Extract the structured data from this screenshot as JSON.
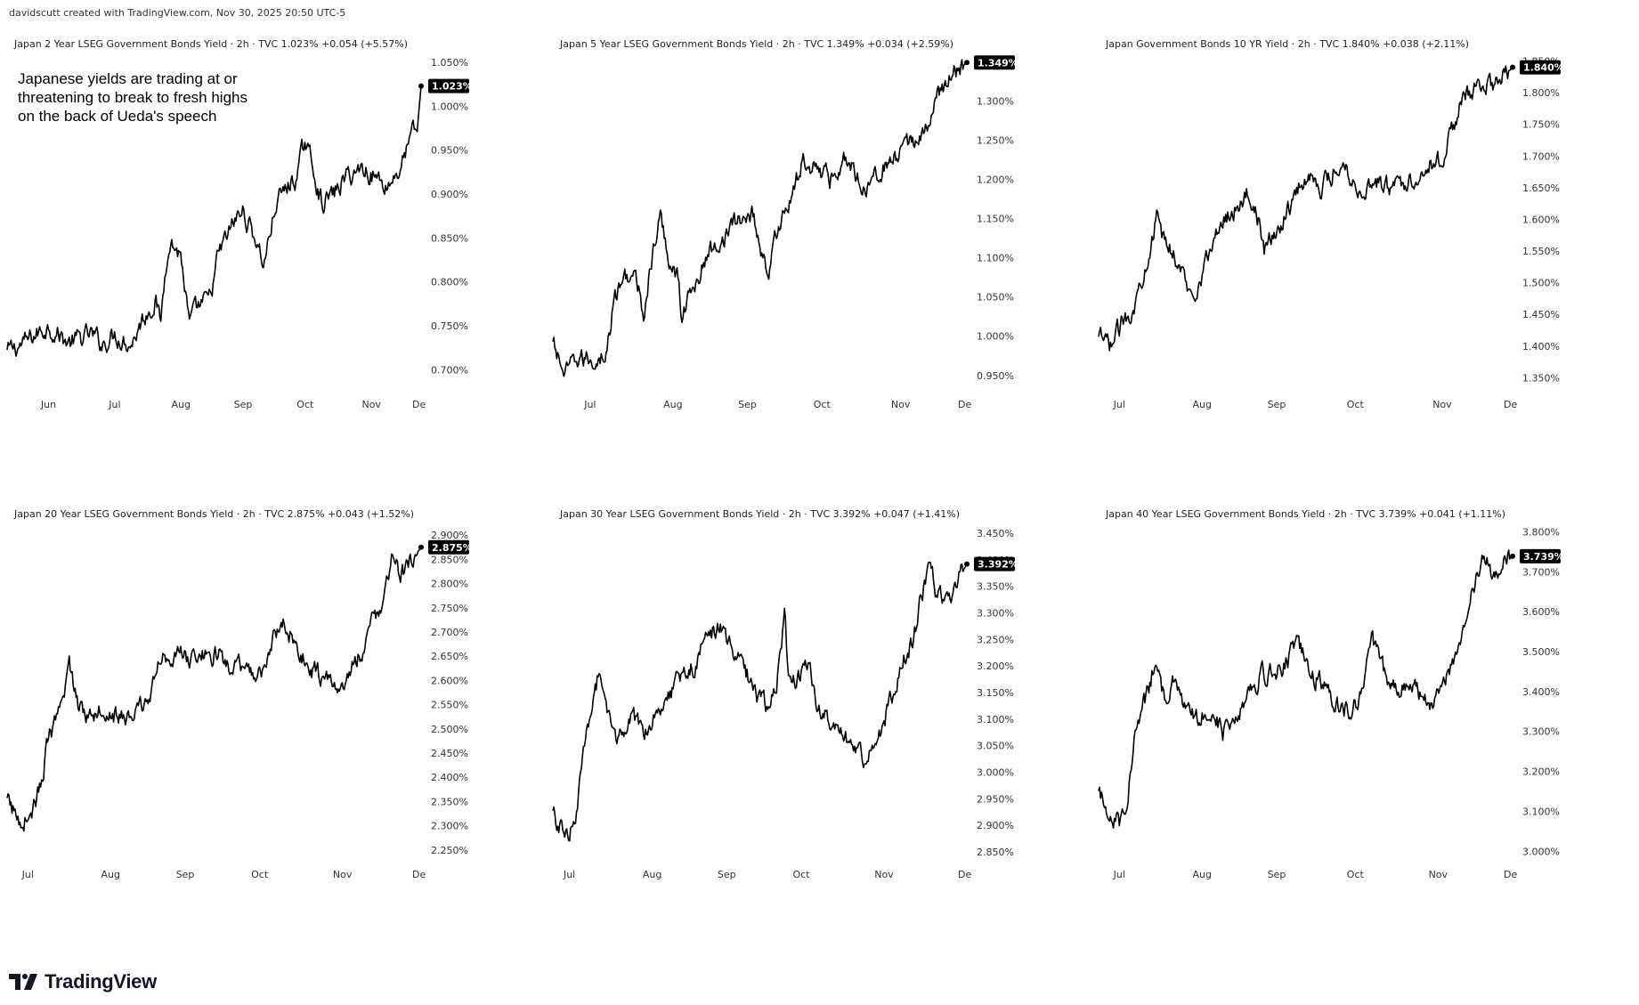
{
  "credit": "davidscutt created with TradingView.com, Nov 30, 2025 20:50 UTC-5",
  "annotation_lines": [
    "Japanese yields are trading at or",
    "threatening to break to fresh highs",
    "on the back of Ueda's speech"
  ],
  "logo_text": "TradingView",
  "icons": {
    "logo": "tradingview-logo-icon"
  },
  "colors": {
    "line": "#000000",
    "tag_bg": "#000000",
    "tag_text": "#ffffff",
    "background": "#ffffff"
  },
  "chart_data": [
    {
      "type": "line",
      "title": "Japan 2 Year LSEG Government Bonds Yield · 2h · TVC  1.023%  +0.054 (+5.57%)",
      "last_label": "1.023%",
      "last_value": 1.023,
      "ylim": [
        0.68,
        1.055
      ],
      "yticks": [
        0.7,
        0.75,
        0.8,
        0.85,
        0.9,
        0.95,
        1.0,
        1.05
      ],
      "ytick_labels": [
        "0.700%",
        "0.750%",
        "0.800%",
        "0.850%",
        "0.900%",
        "0.950%",
        "1.000%",
        "1.050%"
      ],
      "xticks": [
        "Jun",
        "Jul",
        "Aug",
        "Sep",
        "Oct",
        "Nov",
        "De"
      ],
      "xtick_pos": [
        0.1,
        0.26,
        0.42,
        0.57,
        0.72,
        0.88,
        0.995
      ],
      "anchors": [
        [
          0,
          0.72
        ],
        [
          0.04,
          0.73
        ],
        [
          0.1,
          0.75
        ],
        [
          0.15,
          0.73
        ],
        [
          0.2,
          0.74
        ],
        [
          0.23,
          0.73
        ],
        [
          0.26,
          0.74
        ],
        [
          0.3,
          0.73
        ],
        [
          0.33,
          0.76
        ],
        [
          0.36,
          0.78
        ],
        [
          0.37,
          0.75
        ],
        [
          0.39,
          0.85
        ],
        [
          0.42,
          0.83
        ],
        [
          0.44,
          0.75
        ],
        [
          0.46,
          0.77
        ],
        [
          0.49,
          0.78
        ],
        [
          0.51,
          0.83
        ],
        [
          0.55,
          0.87
        ],
        [
          0.57,
          0.88
        ],
        [
          0.6,
          0.85
        ],
        [
          0.62,
          0.82
        ],
        [
          0.65,
          0.89
        ],
        [
          0.68,
          0.91
        ],
        [
          0.7,
          0.92
        ],
        [
          0.72,
          0.96
        ],
        [
          0.74,
          0.93
        ],
        [
          0.76,
          0.89
        ],
        [
          0.79,
          0.9
        ],
        [
          0.82,
          0.92
        ],
        [
          0.86,
          0.93
        ],
        [
          0.89,
          0.92
        ],
        [
          0.92,
          0.91
        ],
        [
          0.95,
          0.93
        ],
        [
          0.98,
          0.97
        ],
        [
          0.99,
          0.97
        ],
        [
          1.0,
          1.023
        ]
      ]
    },
    {
      "type": "line",
      "title": "Japan 5 Year LSEG Government Bonds Yield · 2h · TVC  1.349%  +0.034 (+2.59%)",
      "last_label": "1.349%",
      "last_value": 1.349,
      "ylim": [
        0.935,
        1.355
      ],
      "yticks": [
        0.95,
        1.0,
        1.05,
        1.1,
        1.15,
        1.2,
        1.25,
        1.3
      ],
      "ytick_labels": [
        "0.950%",
        "1.000%",
        "1.050%",
        "1.100%",
        "1.150%",
        "1.200%",
        "1.250%",
        "1.300%"
      ],
      "xticks": [
        "Jul",
        "Aug",
        "Sep",
        "Oct",
        "Nov",
        "De"
      ],
      "xtick_pos": [
        0.09,
        0.29,
        0.47,
        0.65,
        0.84,
        0.995
      ],
      "anchors": [
        [
          0,
          0.99
        ],
        [
          0.03,
          0.95
        ],
        [
          0.06,
          0.97
        ],
        [
          0.1,
          0.97
        ],
        [
          0.13,
          0.98
        ],
        [
          0.15,
          1.05
        ],
        [
          0.18,
          1.08
        ],
        [
          0.2,
          1.07
        ],
        [
          0.22,
          1.03
        ],
        [
          0.24,
          1.1
        ],
        [
          0.26,
          1.15
        ],
        [
          0.28,
          1.1
        ],
        [
          0.3,
          1.08
        ],
        [
          0.31,
          1.03
        ],
        [
          0.34,
          1.06
        ],
        [
          0.37,
          1.1
        ],
        [
          0.4,
          1.12
        ],
        [
          0.43,
          1.14
        ],
        [
          0.46,
          1.15
        ],
        [
          0.48,
          1.16
        ],
        [
          0.5,
          1.12
        ],
        [
          0.52,
          1.08
        ],
        [
          0.55,
          1.15
        ],
        [
          0.58,
          1.18
        ],
        [
          0.6,
          1.22
        ],
        [
          0.63,
          1.22
        ],
        [
          0.65,
          1.21
        ],
        [
          0.67,
          1.2
        ],
        [
          0.7,
          1.23
        ],
        [
          0.73,
          1.21
        ],
        [
          0.75,
          1.19
        ],
        [
          0.78,
          1.21
        ],
        [
          0.81,
          1.22
        ],
        [
          0.84,
          1.23
        ],
        [
          0.87,
          1.25
        ],
        [
          0.9,
          1.26
        ],
        [
          0.92,
          1.29
        ],
        [
          0.94,
          1.32
        ],
        [
          0.96,
          1.33
        ],
        [
          0.98,
          1.34
        ],
        [
          1.0,
          1.349
        ]
      ]
    },
    {
      "type": "line",
      "title": "Japan Government Bonds 10 YR Yield · 2h · TVC  1.840%  +0.038 (+2.11%)",
      "last_label": "1.840%",
      "last_value": 1.84,
      "ylim": [
        1.335,
        1.855
      ],
      "yticks": [
        1.35,
        1.4,
        1.45,
        1.5,
        1.55,
        1.6,
        1.65,
        1.7,
        1.75,
        1.8,
        1.85
      ],
      "ytick_labels": [
        "1.350%",
        "1.400%",
        "1.450%",
        "1.500%",
        "1.550%",
        "1.600%",
        "1.650%",
        "1.700%",
        "1.750%",
        "1.800%",
        "1.850%"
      ],
      "xticks": [
        "Jul",
        "Aug",
        "Sep",
        "Oct",
        "Nov",
        "De"
      ],
      "xtick_pos": [
        0.05,
        0.25,
        0.43,
        0.62,
        0.83,
        0.995
      ],
      "anchors": [
        [
          0,
          1.41
        ],
        [
          0.03,
          1.4
        ],
        [
          0.06,
          1.44
        ],
        [
          0.09,
          1.47
        ],
        [
          0.12,
          1.55
        ],
        [
          0.14,
          1.6
        ],
        [
          0.16,
          1.56
        ],
        [
          0.18,
          1.55
        ],
        [
          0.2,
          1.52
        ],
        [
          0.22,
          1.48
        ],
        [
          0.24,
          1.5
        ],
        [
          0.27,
          1.55
        ],
        [
          0.3,
          1.6
        ],
        [
          0.33,
          1.62
        ],
        [
          0.36,
          1.64
        ],
        [
          0.38,
          1.62
        ],
        [
          0.4,
          1.55
        ],
        [
          0.43,
          1.58
        ],
        [
          0.46,
          1.62
        ],
        [
          0.49,
          1.66
        ],
        [
          0.52,
          1.67
        ],
        [
          0.54,
          1.65
        ],
        [
          0.57,
          1.68
        ],
        [
          0.59,
          1.69
        ],
        [
          0.61,
          1.67
        ],
        [
          0.63,
          1.64
        ],
        [
          0.66,
          1.66
        ],
        [
          0.7,
          1.65
        ],
        [
          0.74,
          1.66
        ],
        [
          0.77,
          1.67
        ],
        [
          0.8,
          1.69
        ],
        [
          0.82,
          1.69
        ],
        [
          0.85,
          1.73
        ],
        [
          0.88,
          1.8
        ],
        [
          0.9,
          1.79
        ],
        [
          0.92,
          1.82
        ],
        [
          0.95,
          1.81
        ],
        [
          0.97,
          1.82
        ],
        [
          1.0,
          1.84
        ]
      ]
    },
    {
      "type": "line",
      "title": "Japan 20 Year LSEG Government Bonds Yield · 2h · TVC  2.875%  +0.043 (+1.52%)",
      "last_label": "2.875%",
      "last_value": 2.875,
      "ylim": [
        2.235,
        2.915
      ],
      "yticks": [
        2.25,
        2.3,
        2.35,
        2.4,
        2.45,
        2.5,
        2.55,
        2.6,
        2.65,
        2.7,
        2.75,
        2.8,
        2.85,
        2.9
      ],
      "ytick_labels": [
        "2.250%",
        "2.300%",
        "2.350%",
        "2.400%",
        "2.450%",
        "2.500%",
        "2.550%",
        "2.600%",
        "2.650%",
        "2.700%",
        "2.750%",
        "2.800%",
        "2.850%",
        "2.900%"
      ],
      "xticks": [
        "Jul",
        "Aug",
        "Sep",
        "Oct",
        "Nov",
        "De"
      ],
      "xtick_pos": [
        0.05,
        0.25,
        0.43,
        0.61,
        0.81,
        0.995
      ],
      "anchors": [
        [
          0,
          2.35
        ],
        [
          0.03,
          2.31
        ],
        [
          0.06,
          2.33
        ],
        [
          0.08,
          2.38
        ],
        [
          0.1,
          2.48
        ],
        [
          0.13,
          2.53
        ],
        [
          0.15,
          2.64
        ],
        [
          0.17,
          2.55
        ],
        [
          0.2,
          2.53
        ],
        [
          0.23,
          2.55
        ],
        [
          0.26,
          2.53
        ],
        [
          0.28,
          2.52
        ],
        [
          0.31,
          2.53
        ],
        [
          0.34,
          2.56
        ],
        [
          0.36,
          2.62
        ],
        [
          0.39,
          2.66
        ],
        [
          0.42,
          2.65
        ],
        [
          0.45,
          2.64
        ],
        [
          0.48,
          2.66
        ],
        [
          0.51,
          2.65
        ],
        [
          0.54,
          2.63
        ],
        [
          0.57,
          2.62
        ],
        [
          0.6,
          2.61
        ],
        [
          0.62,
          2.63
        ],
        [
          0.64,
          2.67
        ],
        [
          0.66,
          2.72
        ],
        [
          0.69,
          2.69
        ],
        [
          0.71,
          2.65
        ],
        [
          0.74,
          2.62
        ],
        [
          0.77,
          2.6
        ],
        [
          0.8,
          2.58
        ],
        [
          0.83,
          2.62
        ],
        [
          0.86,
          2.67
        ],
        [
          0.89,
          2.73
        ],
        [
          0.91,
          2.78
        ],
        [
          0.93,
          2.85
        ],
        [
          0.95,
          2.81
        ],
        [
          0.97,
          2.84
        ],
        [
          1.0,
          2.875
        ]
      ]
    },
    {
      "type": "line",
      "title": "Japan 30 Year LSEG Government Bonds Yield · 2h · TVC  3.392%  +0.047 (+1.41%)",
      "last_label": "3.392%",
      "last_value": 3.392,
      "ylim": [
        2.84,
        3.46
      ],
      "yticks": [
        2.85,
        2.9,
        2.95,
        3.0,
        3.05,
        3.1,
        3.15,
        3.2,
        3.25,
        3.3,
        3.35,
        3.4,
        3.45
      ],
      "ytick_labels": [
        "2.850%",
        "2.900%",
        "2.950%",
        "3.000%",
        "3.050%",
        "3.100%",
        "3.150%",
        "3.200%",
        "3.250%",
        "3.300%",
        "3.350%",
        "3.400%",
        "3.450%"
      ],
      "xticks": [
        "Jul",
        "Aug",
        "Sep",
        "Oct",
        "Nov",
        "De"
      ],
      "xtick_pos": [
        0.04,
        0.24,
        0.42,
        0.6,
        0.8,
        0.995
      ],
      "anchors": [
        [
          0,
          2.92
        ],
        [
          0.03,
          2.88
        ],
        [
          0.05,
          2.9
        ],
        [
          0.07,
          3.0
        ],
        [
          0.09,
          3.12
        ],
        [
          0.11,
          3.18
        ],
        [
          0.13,
          3.1
        ],
        [
          0.16,
          3.06
        ],
        [
          0.19,
          3.1
        ],
        [
          0.22,
          3.08
        ],
        [
          0.25,
          3.12
        ],
        [
          0.28,
          3.15
        ],
        [
          0.31,
          3.18
        ],
        [
          0.34,
          3.2
        ],
        [
          0.37,
          3.25
        ],
        [
          0.4,
          3.28
        ],
        [
          0.43,
          3.23
        ],
        [
          0.46,
          3.2
        ],
        [
          0.49,
          3.15
        ],
        [
          0.52,
          3.12
        ],
        [
          0.54,
          3.17
        ],
        [
          0.56,
          3.3
        ],
        [
          0.57,
          3.16
        ],
        [
          0.59,
          3.18
        ],
        [
          0.62,
          3.2
        ],
        [
          0.64,
          3.12
        ],
        [
          0.66,
          3.1
        ],
        [
          0.69,
          3.07
        ],
        [
          0.72,
          3.05
        ],
        [
          0.75,
          3.03
        ],
        [
          0.78,
          3.06
        ],
        [
          0.81,
          3.12
        ],
        [
          0.84,
          3.2
        ],
        [
          0.87,
          3.25
        ],
        [
          0.89,
          3.33
        ],
        [
          0.91,
          3.38
        ],
        [
          0.93,
          3.33
        ],
        [
          0.95,
          3.32
        ],
        [
          0.97,
          3.35
        ],
        [
          1.0,
          3.392
        ]
      ]
    },
    {
      "type": "line",
      "title": "Japan 40 Year LSEG Government Bonds Yield · 2h · TVC  3.739%  +0.041 (+1.11%)",
      "last_label": "3.739%",
      "last_value": 3.739,
      "ylim": [
        2.985,
        3.81
      ],
      "yticks": [
        3.0,
        3.1,
        3.2,
        3.3,
        3.4,
        3.5,
        3.6,
        3.7,
        3.8
      ],
      "ytick_labels": [
        "3.000%",
        "3.100%",
        "3.200%",
        "3.300%",
        "3.400%",
        "3.500%",
        "3.600%",
        "3.700%",
        "3.800%"
      ],
      "xticks": [
        "Jul",
        "Aug",
        "Sep",
        "Oct",
        "Nov",
        "De"
      ],
      "xtick_pos": [
        0.05,
        0.25,
        0.43,
        0.62,
        0.82,
        0.995
      ],
      "anchors": [
        [
          0,
          3.14
        ],
        [
          0.03,
          3.1
        ],
        [
          0.05,
          3.07
        ],
        [
          0.07,
          3.15
        ],
        [
          0.09,
          3.3
        ],
        [
          0.12,
          3.4
        ],
        [
          0.14,
          3.5
        ],
        [
          0.16,
          3.37
        ],
        [
          0.18,
          3.42
        ],
        [
          0.21,
          3.35
        ],
        [
          0.24,
          3.33
        ],
        [
          0.27,
          3.37
        ],
        [
          0.3,
          3.3
        ],
        [
          0.33,
          3.34
        ],
        [
          0.36,
          3.4
        ],
        [
          0.39,
          3.44
        ],
        [
          0.42,
          3.45
        ],
        [
          0.45,
          3.47
        ],
        [
          0.48,
          3.52
        ],
        [
          0.51,
          3.45
        ],
        [
          0.54,
          3.42
        ],
        [
          0.57,
          3.38
        ],
        [
          0.6,
          3.35
        ],
        [
          0.62,
          3.37
        ],
        [
          0.64,
          3.42
        ],
        [
          0.66,
          3.52
        ],
        [
          0.69,
          3.45
        ],
        [
          0.72,
          3.4
        ],
        [
          0.75,
          3.43
        ],
        [
          0.78,
          3.38
        ],
        [
          0.8,
          3.36
        ],
        [
          0.82,
          3.4
        ],
        [
          0.85,
          3.47
        ],
        [
          0.87,
          3.52
        ],
        [
          0.89,
          3.6
        ],
        [
          0.91,
          3.66
        ],
        [
          0.93,
          3.76
        ],
        [
          0.95,
          3.69
        ],
        [
          0.97,
          3.71
        ],
        [
          1.0,
          3.739
        ]
      ]
    }
  ]
}
